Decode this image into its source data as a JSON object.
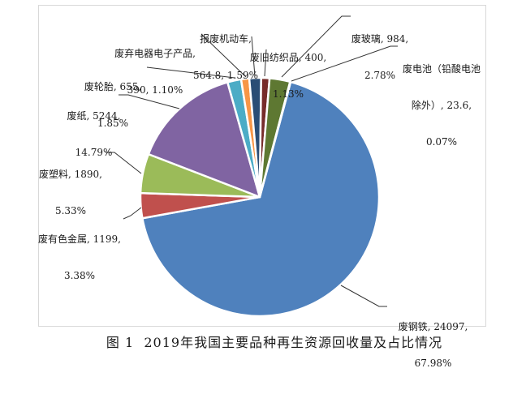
{
  "figure": {
    "caption": "图 1  2019年我国主要品种再生资源回收量及占比情况"
  },
  "chart_data": {
    "type": "pie",
    "title": "图 1  2019年我国主要品种再生资源回收量及占比情况",
    "legend": "none",
    "start_angle_deg": 15,
    "slices": [
      {
        "id": "waste-steel",
        "name": "废钢铁",
        "value": 24097,
        "percent": 67.98,
        "color": "#4F81BD",
        "label_lines": [
          "废钢铁, 24097,",
          "67.98%"
        ]
      },
      {
        "id": "nonferrous-metal",
        "name": "废有色金属",
        "value": 1199,
        "percent": 3.38,
        "color": "#C0504D",
        "label_lines": [
          "废有色金属, 1199,",
          "3.38%"
        ]
      },
      {
        "id": "waste-plastic",
        "name": "废塑料",
        "value": 1890,
        "percent": 5.33,
        "color": "#9BBB59",
        "label_lines": [
          "废塑料, 1890,",
          "5.33%"
        ]
      },
      {
        "id": "waste-paper",
        "name": "废纸",
        "value": 5244,
        "percent": 14.79,
        "color": "#8064A2",
        "label_lines": [
          "废纸, 5244,",
          "14.79%"
        ]
      },
      {
        "id": "waste-tires",
        "name": "废轮胎",
        "value": 655,
        "percent": 1.85,
        "color": "#4BACC6",
        "label_lines": [
          "废轮胎, 655,",
          "1.85%"
        ]
      },
      {
        "id": "waste-electronics",
        "name": "废弃电器电子产品",
        "value": 390,
        "percent": 1.1,
        "color": "#F79646",
        "label_lines": [
          "废弃电器电子产品,",
          "390, 1.10%"
        ]
      },
      {
        "id": "scrapped-vehicles",
        "name": "报废机动车",
        "value": 564.8,
        "percent": 1.59,
        "color": "#2A4D75",
        "label_lines": [
          "报废机动车,",
          "564.8, 1.59%"
        ]
      },
      {
        "id": "waste-textiles",
        "name": "废旧纺织品",
        "value": 400,
        "percent": 1.13,
        "color": "#772C2A",
        "label_lines": [
          "废旧纺织品, 400,",
          "1.13%"
        ]
      },
      {
        "id": "waste-glass",
        "name": "废玻璃",
        "value": 984,
        "percent": 2.78,
        "color": "#5E7832",
        "label_lines": [
          "废玻璃, 984,",
          "2.78%"
        ]
      },
      {
        "id": "waste-batteries",
        "name": "废电池（铅酸电池除外）",
        "value": 23.6,
        "percent": 0.07,
        "color": "#403152",
        "label_lines": [
          "废电池（铅酸电池",
          "除外）, 23.6,",
          "0.07%"
        ]
      }
    ]
  }
}
